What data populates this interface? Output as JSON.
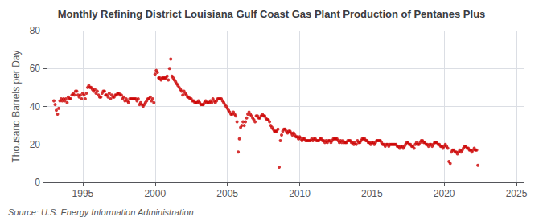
{
  "chart_data": {
    "type": "scatter",
    "title": "Monthly Refining District Louisiana Gulf Coast Gas Plant Production of Pentanes Plus",
    "ylabel": "Thousand Barrels per Day",
    "annotations": [
      "Source: U.S. Energy Information Administration"
    ],
    "color": "#cc0000",
    "grid": true,
    "xlim": [
      1992.5,
      2025.5
    ],
    "xticks": [
      1995,
      2000,
      2005,
      2010,
      2015,
      2020,
      2025
    ],
    "ylim": [
      0,
      80
    ],
    "yticks": [
      0,
      20,
      40,
      60,
      80
    ],
    "x": [
      1993.0,
      1993.083,
      1993.167,
      1993.25,
      1993.333,
      1993.417,
      1993.5,
      1993.583,
      1993.667,
      1993.75,
      1993.833,
      1993.917,
      1994.0,
      1994.083,
      1994.167,
      1994.25,
      1994.333,
      1994.417,
      1994.5,
      1994.583,
      1994.667,
      1994.75,
      1994.833,
      1994.917,
      1995.0,
      1995.083,
      1995.167,
      1995.25,
      1995.333,
      1995.417,
      1995.5,
      1995.583,
      1995.667,
      1995.75,
      1995.833,
      1995.917,
      1996.0,
      1996.083,
      1996.167,
      1996.25,
      1996.333,
      1996.417,
      1996.5,
      1996.583,
      1996.667,
      1996.75,
      1996.833,
      1996.917,
      1997.0,
      1997.083,
      1997.167,
      1997.25,
      1997.333,
      1997.417,
      1997.5,
      1997.583,
      1997.667,
      1997.75,
      1997.833,
      1997.917,
      1998.0,
      1998.083,
      1998.167,
      1998.25,
      1998.333,
      1998.417,
      1998.5,
      1998.583,
      1998.667,
      1998.75,
      1998.833,
      1998.917,
      1999.0,
      1999.083,
      1999.167,
      1999.25,
      1999.333,
      1999.417,
      1999.5,
      1999.583,
      1999.667,
      1999.75,
      1999.833,
      1999.917,
      2000.0,
      2000.083,
      2000.167,
      2000.25,
      2000.333,
      2000.417,
      2000.5,
      2000.583,
      2000.667,
      2000.75,
      2000.833,
      2000.917,
      2001.0,
      2001.083,
      2001.167,
      2001.25,
      2001.333,
      2001.417,
      2001.5,
      2001.583,
      2001.667,
      2001.75,
      2001.833,
      2001.917,
      2002.0,
      2002.083,
      2002.167,
      2002.25,
      2002.333,
      2002.417,
      2002.5,
      2002.583,
      2002.667,
      2002.75,
      2002.833,
      2002.917,
      2003.0,
      2003.083,
      2003.167,
      2003.25,
      2003.333,
      2003.417,
      2003.5,
      2003.583,
      2003.667,
      2003.75,
      2003.833,
      2003.917,
      2004.0,
      2004.083,
      2004.167,
      2004.25,
      2004.333,
      2004.417,
      2004.5,
      2004.583,
      2004.667,
      2004.75,
      2004.833,
      2004.917,
      2005.0,
      2005.083,
      2005.167,
      2005.25,
      2005.333,
      2005.417,
      2005.5,
      2005.583,
      2005.667,
      2005.75,
      2005.833,
      2005.917,
      2006.0,
      2006.083,
      2006.167,
      2006.25,
      2006.333,
      2006.417,
      2006.5,
      2006.583,
      2006.667,
      2006.75,
      2006.833,
      2006.917,
      2007.0,
      2007.083,
      2007.167,
      2007.25,
      2007.333,
      2007.417,
      2007.5,
      2007.583,
      2007.667,
      2007.75,
      2007.833,
      2007.917,
      2008.0,
      2008.083,
      2008.167,
      2008.25,
      2008.333,
      2008.417,
      2008.5,
      2008.583,
      2008.667,
      2008.75,
      2008.833,
      2008.917,
      2009.0,
      2009.083,
      2009.167,
      2009.25,
      2009.333,
      2009.417,
      2009.5,
      2009.583,
      2009.667,
      2009.75,
      2009.833,
      2009.917,
      2010.0,
      2010.083,
      2010.167,
      2010.25,
      2010.333,
      2010.417,
      2010.5,
      2010.583,
      2010.667,
      2010.75,
      2010.833,
      2010.917,
      2011.0,
      2011.083,
      2011.167,
      2011.25,
      2011.333,
      2011.417,
      2011.5,
      2011.583,
      2011.667,
      2011.75,
      2011.833,
      2011.917,
      2012.0,
      2012.083,
      2012.167,
      2012.25,
      2012.333,
      2012.417,
      2012.5,
      2012.583,
      2012.667,
      2012.75,
      2012.833,
      2012.917,
      2013.0,
      2013.083,
      2013.167,
      2013.25,
      2013.333,
      2013.417,
      2013.5,
      2013.583,
      2013.667,
      2013.75,
      2013.833,
      2013.917,
      2014.0,
      2014.083,
      2014.167,
      2014.25,
      2014.333,
      2014.417,
      2014.5,
      2014.583,
      2014.667,
      2014.75,
      2014.833,
      2014.917,
      2015.0,
      2015.083,
      2015.167,
      2015.25,
      2015.333,
      2015.417,
      2015.5,
      2015.583,
      2015.667,
      2015.75,
      2015.833,
      2015.917,
      2016.0,
      2016.083,
      2016.167,
      2016.25,
      2016.333,
      2016.417,
      2016.5,
      2016.583,
      2016.667,
      2016.75,
      2016.833,
      2016.917,
      2017.0,
      2017.083,
      2017.167,
      2017.25,
      2017.333,
      2017.417,
      2017.5,
      2017.583,
      2017.667,
      2017.75,
      2017.833,
      2017.917,
      2018.0,
      2018.083,
      2018.167,
      2018.25,
      2018.333,
      2018.417,
      2018.5,
      2018.583,
      2018.667,
      2018.75,
      2018.833,
      2018.917,
      2019.0,
      2019.083,
      2019.167,
      2019.25,
      2019.333,
      2019.417,
      2019.5,
      2019.583,
      2019.667,
      2019.75,
      2019.833,
      2019.917,
      2020.0,
      2020.083,
      2020.167,
      2020.25,
      2020.333,
      2020.417,
      2020.5,
      2020.583,
      2020.667,
      2020.75,
      2020.833,
      2020.917,
      2021.0,
      2021.083,
      2021.167,
      2021.25,
      2021.333,
      2021.417,
      2021.5,
      2021.583,
      2021.667,
      2021.75,
      2021.833,
      2021.917,
      2022.0,
      2022.083,
      2022.167,
      2022.25,
      2022.333
    ],
    "values": [
      43,
      41,
      38,
      36,
      39,
      43,
      44,
      43,
      44,
      43,
      44,
      42,
      45,
      44,
      44,
      46,
      47,
      46,
      48,
      48,
      46,
      45,
      46,
      44,
      47,
      46,
      44,
      47,
      50,
      51,
      50,
      50,
      49,
      48,
      49,
      47,
      48,
      46,
      45,
      45,
      47,
      48,
      48,
      46,
      46,
      45,
      47,
      44,
      46,
      45,
      45,
      46,
      46,
      47,
      47,
      46,
      46,
      44,
      45,
      43,
      44,
      43,
      42,
      44,
      44,
      44,
      44,
      44,
      44,
      43,
      44,
      41,
      42,
      41,
      40,
      41,
      42,
      43,
      44,
      44,
      45,
      43,
      44,
      42,
      57,
      59,
      58,
      55,
      55,
      54,
      55,
      55,
      55,
      55,
      56,
      54,
      60,
      65,
      56,
      55,
      54,
      53,
      52,
      51,
      50,
      49,
      48,
      46,
      48,
      47,
      46,
      45,
      45,
      44,
      44,
      43,
      43,
      42,
      42,
      42,
      43,
      42,
      41,
      41,
      41,
      42,
      43,
      42,
      42,
      42,
      43,
      42,
      44,
      43,
      42,
      43,
      44,
      44,
      44,
      44,
      43,
      42,
      41,
      40,
      39,
      38,
      37,
      36,
      36,
      37,
      36,
      35,
      32,
      16,
      23,
      29,
      30,
      32,
      30,
      32,
      34,
      36,
      37,
      36,
      35,
      34,
      33,
      32,
      35,
      35,
      34,
      34,
      35,
      36,
      35,
      35,
      34,
      33,
      33,
      32,
      30,
      29,
      28,
      27,
      27,
      27,
      28,
      8,
      22,
      25,
      27,
      28,
      28,
      27,
      26,
      27,
      27,
      26,
      25,
      26,
      25,
      24,
      24,
      23,
      24,
      23,
      22,
      23,
      23,
      22,
      22,
      22,
      22,
      22,
      23,
      22,
      23,
      23,
      22,
      22,
      22,
      23,
      23,
      22,
      22,
      21,
      22,
      21,
      22,
      22,
      21,
      22,
      23,
      23,
      23,
      23,
      22,
      21,
      22,
      21,
      22,
      21,
      21,
      21,
      22,
      22,
      22,
      21,
      21,
      20,
      21,
      20,
      22,
      21,
      21,
      22,
      23,
      23,
      23,
      22,
      22,
      21,
      21,
      20,
      21,
      21,
      20,
      21,
      22,
      22,
      22,
      22,
      21,
      20,
      20,
      19,
      20,
      20,
      19,
      20,
      20,
      20,
      20,
      20,
      20,
      19,
      19,
      18,
      19,
      19,
      18,
      19,
      20,
      21,
      21,
      20,
      20,
      19,
      19,
      18,
      20,
      21,
      20,
      20,
      21,
      22,
      22,
      21,
      21,
      20,
      20,
      19,
      20,
      20,
      19,
      20,
      21,
      21,
      21,
      20,
      20,
      19,
      19,
      18,
      19,
      20,
      19,
      18,
      11,
      10,
      16,
      17,
      17,
      16,
      16,
      15,
      16,
      17,
      16,
      17,
      18,
      19,
      19,
      18,
      18,
      17,
      17,
      16,
      17,
      18,
      17,
      17,
      9
    ]
  }
}
